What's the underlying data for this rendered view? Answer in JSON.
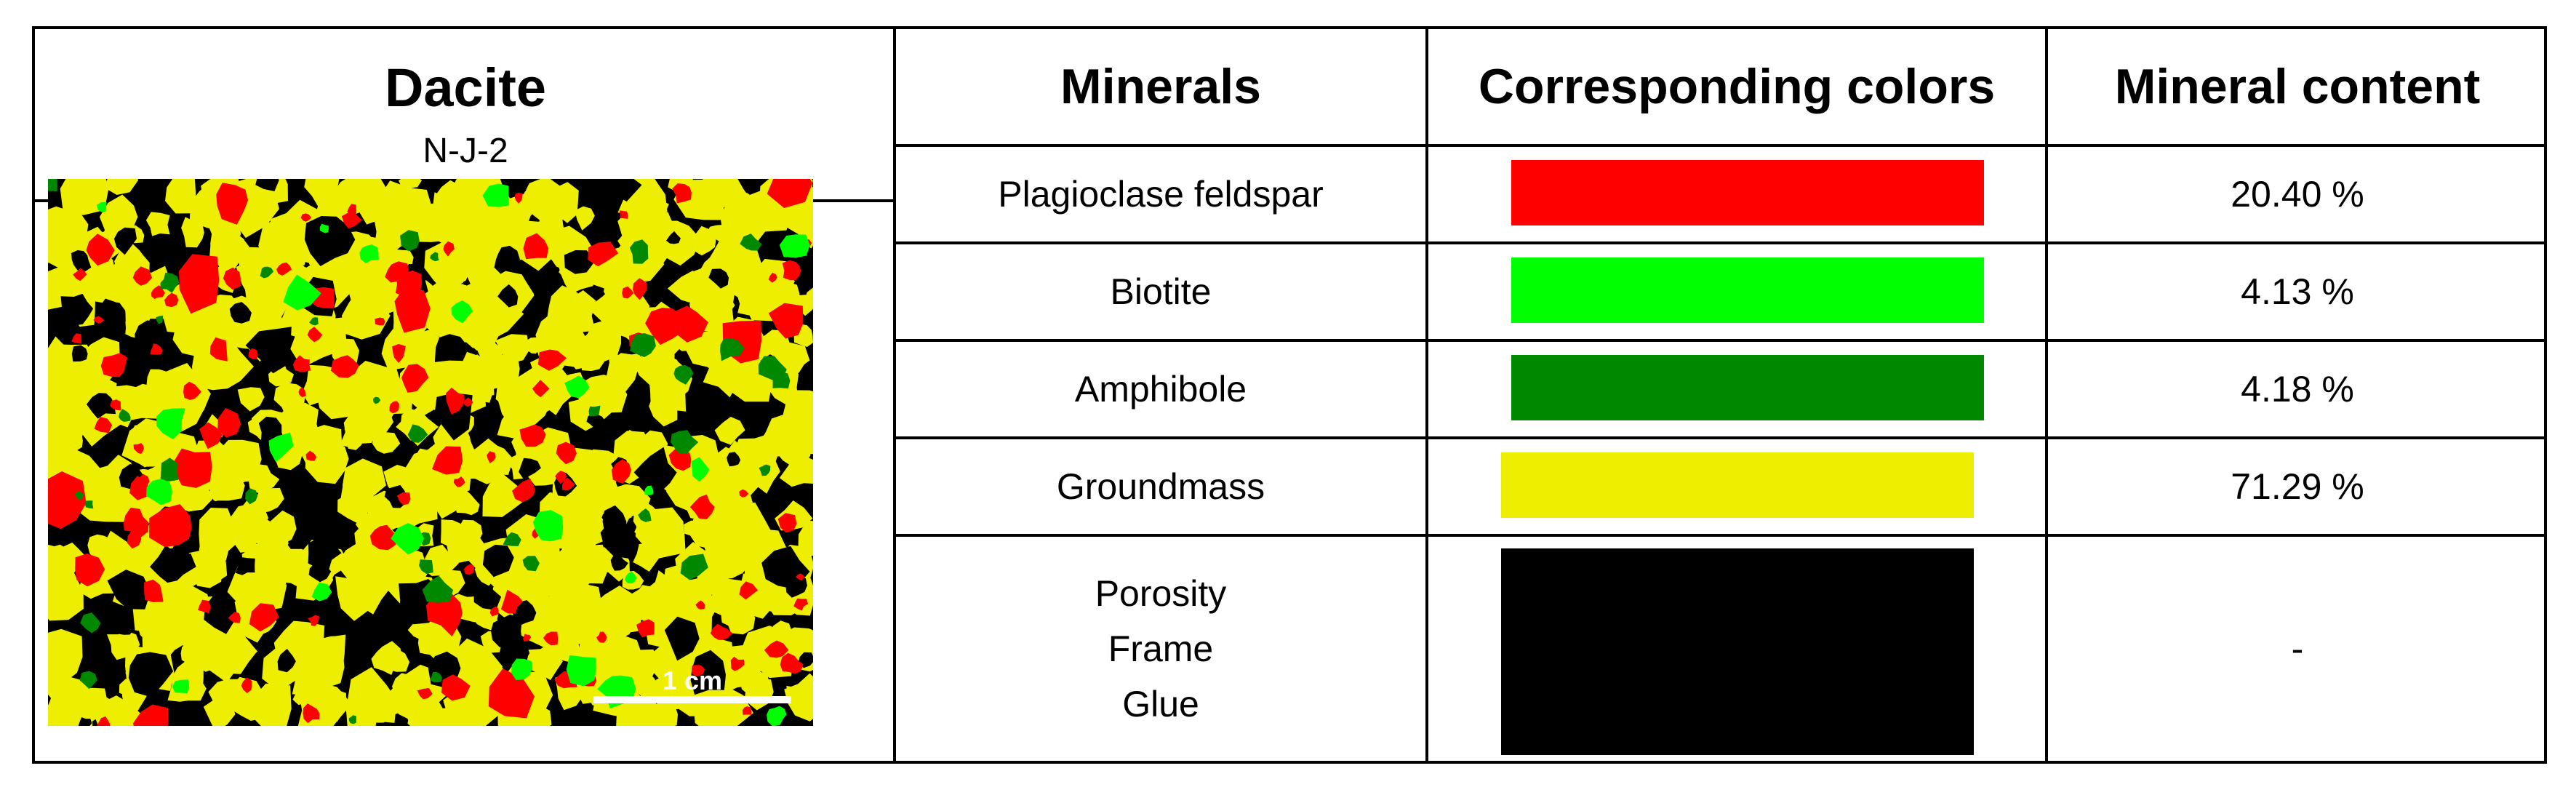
{
  "sample": {
    "name": "Dacite",
    "id": "N-J-2",
    "scale_label": "1 cm"
  },
  "headers": {
    "minerals": "Minerals",
    "colors": "Corresponding colors",
    "content": "Mineral content"
  },
  "rows": [
    {
      "mineral": "Plagioclase feldspar",
      "color": "#ff0000",
      "content": "20.40 %"
    },
    {
      "mineral": "Biotite",
      "color": "#00ff00",
      "content": "4.13 %"
    },
    {
      "mineral": "Amphibole",
      "color": "#008800",
      "content": "4.18 %"
    },
    {
      "mineral": "Groundmass",
      "color": "#eeee00",
      "content": "71.29 %"
    }
  ],
  "last_row": {
    "lines": [
      "Porosity",
      "Frame",
      "Glue"
    ],
    "color": "#000000",
    "content": "-"
  }
}
